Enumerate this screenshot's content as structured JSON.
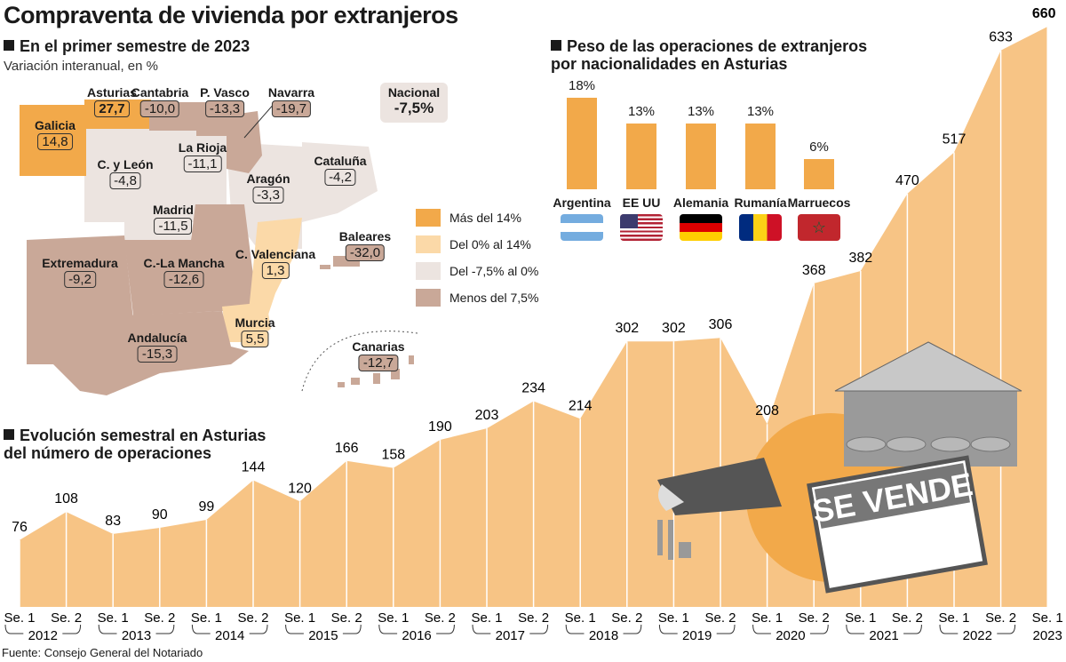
{
  "title": "Compraventa de vivienda por extranjeros",
  "map_section": {
    "heading": "En el primer semestre de 2023",
    "subtitle": "Variación interanual, en %",
    "national": {
      "label": "Nacional",
      "value": "-7,5%"
    },
    "legend": [
      {
        "label": "Más del 14%",
        "color": "#f2a94a"
      },
      {
        "label": "Del 0% al 14%",
        "color": "#fbd9a8"
      },
      {
        "label": "Del -7,5% al 0%",
        "color": "#ece4e0"
      },
      {
        "label": "Menos del 7,5%",
        "color": "#c9a898"
      }
    ],
    "regions": [
      {
        "name": "Asturias",
        "value": "27,7"
      },
      {
        "name": "Cantabria",
        "value": "-10,0"
      },
      {
        "name": "P. Vasco",
        "value": "-13,3"
      },
      {
        "name": "Navarra",
        "value": "-19,7"
      },
      {
        "name": "Galicia",
        "value": "14,8"
      },
      {
        "name": "La Rioja",
        "value": "-11,1"
      },
      {
        "name": "C. y León",
        "value": "-4,8"
      },
      {
        "name": "Aragón",
        "value": "-3,3"
      },
      {
        "name": "Cataluña",
        "value": "-4,2"
      },
      {
        "name": "Madrid",
        "value": "-11,5"
      },
      {
        "name": "Baleares",
        "value": "-32,0"
      },
      {
        "name": "C. Valenciana",
        "value": "1,3"
      },
      {
        "name": "Extremadura",
        "value": "-9,2"
      },
      {
        "name": "C.-La Mancha",
        "value": "-12,6"
      },
      {
        "name": "Murcia",
        "value": "5,5"
      },
      {
        "name": "Andalucía",
        "value": "-15,3"
      },
      {
        "name": "Canarias",
        "value": "-12,7"
      }
    ]
  },
  "chart_data": [
    {
      "type": "bar",
      "title": "Peso de las operaciones de extranjeros por nacionalidades en Asturias",
      "categories": [
        "Argentina",
        "EE UU",
        "Alemania",
        "Rumanía",
        "Marruecos"
      ],
      "values": [
        18,
        13,
        13,
        13,
        6
      ],
      "value_labels": [
        "18%",
        "13%",
        "13%",
        "13%",
        "6%"
      ],
      "bar_color": "#f2a94a"
    },
    {
      "type": "area",
      "title": "Evolución semestral en Asturias del número de operaciones",
      "x": [
        "Se. 1",
        "Se. 2",
        "Se. 1",
        "Se. 2",
        "Se. 1",
        "Se. 2",
        "Se. 1",
        "Se. 2",
        "Se. 1",
        "Se. 2",
        "Se. 1",
        "Se. 2",
        "Se. 1",
        "Se. 2",
        "Se. 1",
        "Se. 2",
        "Se. 1",
        "Se. 2",
        "Se. 1",
        "Se. 2",
        "Se. 1",
        "Se. 2",
        "Se. 1"
      ],
      "years": [
        "2012",
        "2013",
        "2014",
        "2015",
        "2016",
        "2017",
        "2018",
        "2019",
        "2020",
        "2021",
        "2022",
        "2023"
      ],
      "values": [
        76,
        108,
        83,
        90,
        99,
        144,
        120,
        166,
        158,
        190,
        203,
        234,
        214,
        302,
        302,
        306,
        208,
        368,
        382,
        470,
        517,
        633,
        660
      ],
      "ylim": [
        0,
        660
      ],
      "fill_color": "#f7c485",
      "grid": false
    }
  ],
  "illustration": {
    "sign_text": "SE VENDE"
  },
  "source": "Fuente: Consejo General del Notariado"
}
